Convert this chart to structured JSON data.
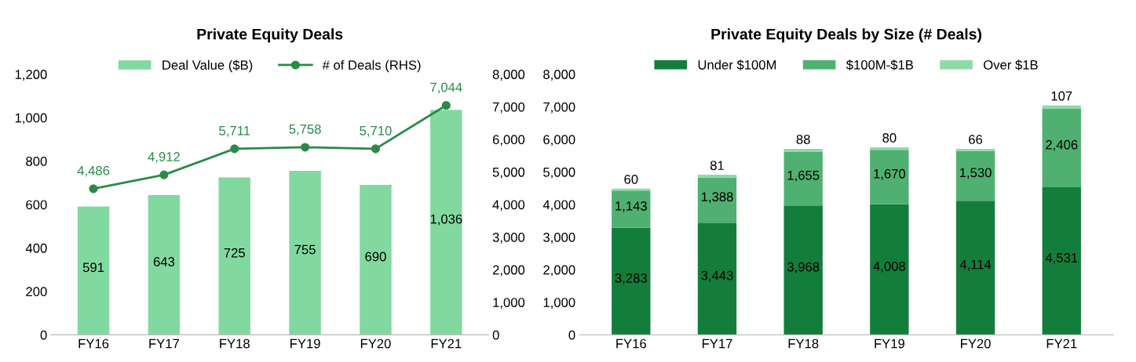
{
  "chart_data": [
    {
      "type": "bar",
      "title": "Private Equity Deals",
      "categories": [
        "FY16",
        "FY17",
        "FY18",
        "FY19",
        "FY20",
        "FY21"
      ],
      "series": [
        {
          "name": "Deal Value ($B)",
          "color": "#82d9a0",
          "values": [
            591,
            643,
            725,
            755,
            690,
            1036
          ],
          "value_labels": [
            "591",
            "643",
            "725",
            "755",
            "690",
            "1,036"
          ]
        },
        {
          "name": "# of Deals (RHS)",
          "type": "line",
          "axis": "y2",
          "color": "#2a8a48",
          "marker": "circle",
          "values": [
            4486,
            4912,
            5711,
            5758,
            5710,
            7044
          ],
          "value_labels": [
            "4,486",
            "4,912",
            "5,711",
            "5,758",
            "5,710",
            "7,044"
          ]
        }
      ],
      "ylim": [
        0,
        1200
      ],
      "yticks": [
        0,
        200,
        400,
        600,
        800,
        {
          "value": 1000,
          "label": "1,000"
        },
        {
          "value": 1200,
          "label": "1,200"
        }
      ],
      "y2lim": [
        0,
        8000
      ],
      "y2ticks": [
        0,
        {
          "value": 1000,
          "label": "1,000"
        },
        {
          "value": 2000,
          "label": "2,000"
        },
        {
          "value": 3000,
          "label": "3,000"
        },
        {
          "value": 4000,
          "label": "4,000"
        },
        {
          "value": 5000,
          "label": "5,000"
        },
        {
          "value": 6000,
          "label": "6,000"
        },
        {
          "value": 7000,
          "label": "7,000"
        },
        {
          "value": 8000,
          "label": "8,000"
        }
      ],
      "legend": "top"
    },
    {
      "type": "bar",
      "title": "Private Equity Deals by Size (# Deals)",
      "categories": [
        "FY16",
        "FY17",
        "FY18",
        "FY19",
        "FY20",
        "FY21"
      ],
      "stacked": true,
      "series": [
        {
          "name": "Under $100M",
          "color": "#137d3c",
          "values": [
            3283,
            3443,
            3968,
            4008,
            4114,
            4531
          ],
          "value_labels": [
            "3,283",
            "3,443",
            "3,968",
            "4,008",
            "4,114",
            "4,531"
          ]
        },
        {
          "name": "$100M-$1B",
          "color": "#4fb071",
          "values": [
            1143,
            1388,
            1655,
            1670,
            1530,
            2406
          ],
          "value_labels": [
            "1,143",
            "1,388",
            "1,655",
            "1,670",
            "1,530",
            "2,406"
          ]
        },
        {
          "name": "Over $1B",
          "color": "#8edba8",
          "values": [
            60,
            81,
            88,
            80,
            66,
            107
          ],
          "value_labels": [
            "60",
            "81",
            "88",
            "80",
            "66",
            "107"
          ]
        }
      ],
      "ylim": [
        0,
        8000
      ],
      "yticks": [
        0,
        {
          "value": 1000,
          "label": "1,000"
        },
        {
          "value": 2000,
          "label": "2,000"
        },
        {
          "value": 3000,
          "label": "3,000"
        },
        {
          "value": 4000,
          "label": "4,000"
        },
        {
          "value": 5000,
          "label": "5,000"
        },
        {
          "value": 6000,
          "label": "6,000"
        },
        {
          "value": 7000,
          "label": "7,000"
        },
        {
          "value": 8000,
          "label": "8,000"
        }
      ],
      "legend": "top"
    }
  ]
}
